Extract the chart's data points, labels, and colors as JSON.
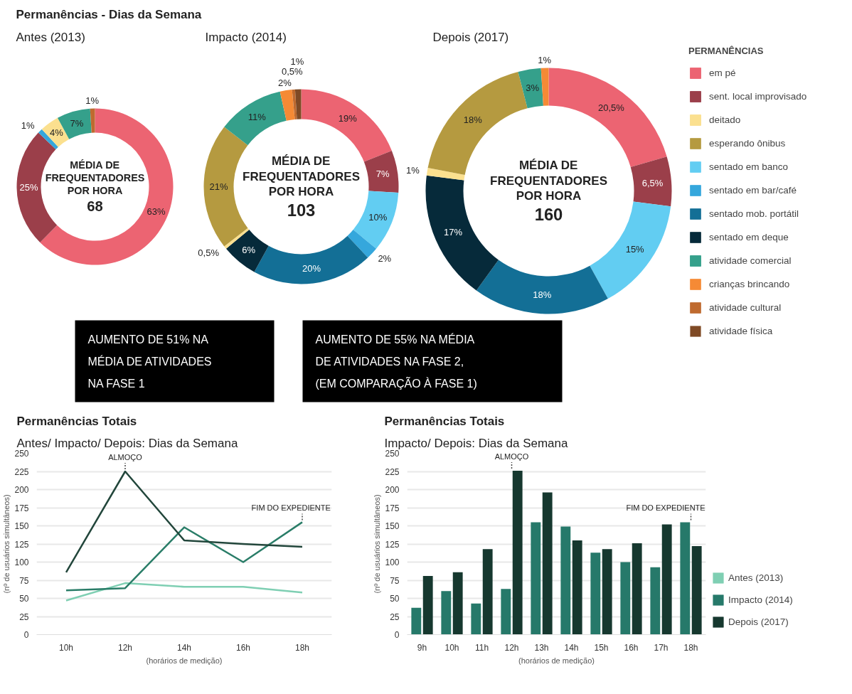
{
  "chart_data": [
    {
      "type": "donut",
      "title": "Permanências - Dias da Semana",
      "subtitle": "Antes (2013)",
      "values": [
        63,
        25,
        1,
        4,
        7,
        1
      ],
      "colors": [
        "#ec6472",
        "#9b3f4a",
        "#35a7dc",
        "#fbe08f",
        "#35a08b",
        "#bf6a2f"
      ],
      "value_labels": [
        "63%",
        "25%",
        "1%",
        "4%",
        "7%",
        "1%"
      ],
      "annotations": [
        "MÉDIA DE FREQUENTADORES POR HORA",
        "68"
      ]
    },
    {
      "type": "donut",
      "subtitle": "Impacto (2014)",
      "values": [
        19,
        7,
        10,
        2,
        20,
        6,
        0.5,
        21,
        11,
        2,
        0.5,
        1
      ],
      "colors": [
        "#ec6472",
        "#9b3f4a",
        "#62cdf2",
        "#35a7dc",
        "#136f96",
        "#062a3a",
        "#fbe08f",
        "#b59a40",
        "#35a08b",
        "#f58a35",
        "#bf6a2f",
        "#7f4a25"
      ],
      "value_labels": [
        "19%",
        "7%",
        "10%",
        "2%",
        "20%",
        "6%",
        "0,5%",
        "21%",
        "11%",
        "2%",
        "0,5%",
        "1%"
      ],
      "annotations": [
        "MÉDIA DE FREQUENTADORES POR HORA",
        "103",
        "AUMENTO DE 51% NA MÉDIA DE ATIVIDADES NA FASE 1"
      ]
    },
    {
      "type": "donut",
      "subtitle": "Depois (2017)",
      "values": [
        20.5,
        6.5,
        15,
        18,
        17,
        1,
        18,
        3,
        1
      ],
      "colors": [
        "#ec6472",
        "#9b3f4a",
        "#62cdf2",
        "#136f96",
        "#062a3a",
        "#fbe08f",
        "#b59a40",
        "#35a08b",
        "#f58a35"
      ],
      "value_labels": [
        "20,5%",
        "6,5%",
        "15%",
        "18%",
        "17%",
        "1%",
        "18%",
        "3%",
        "1%"
      ],
      "annotations": [
        "MÉDIA DE FREQUENTADORES POR HORA",
        "160",
        "AUMENTO DE 55% NA MÉDIA DE ATIVIDADES NA FASE 2, (EM COMPARAÇÃO À FASE 1)"
      ]
    },
    {
      "type": "other",
      "title": "PERMANÊNCIAS",
      "categories": [
        "em pé",
        "sent. local improvisado",
        "deitado",
        "esperando ônibus",
        "sentado em banco",
        "sentado em bar/café",
        "sentado mob. portátil",
        "sentado em deque",
        "atividade comercial",
        "crianças brincando",
        "atividade cultural",
        "atividade física"
      ],
      "colors": [
        "#ec6472",
        "#9b3f4a",
        "#fbe08f",
        "#b59a40",
        "#62cdf2",
        "#35a7dc",
        "#136f96",
        "#062a3a",
        "#35a08b",
        "#f58a35",
        "#bf6a2f",
        "#7f4a25"
      ]
    },
    {
      "type": "line",
      "title": "Permanências Totais",
      "subtitle": "Antes/ Impacto/ Depois: Dias da Semana",
      "xlabel": "(horários de medição)",
      "ylabel": "(nº de usuários simultâneos)",
      "categories": [
        "10h",
        "12h",
        "14h",
        "16h",
        "18h"
      ],
      "ylim": [
        0,
        250
      ],
      "yticks": [
        0,
        25,
        50,
        75,
        100,
        125,
        150,
        175,
        200,
        225,
        250
      ],
      "grid": "y",
      "series": [
        {
          "color": "#7fcfb3",
          "values": [
            47,
            71,
            66,
            66,
            58
          ]
        },
        {
          "color": "#2a7d68",
          "values": [
            61,
            64,
            148,
            100,
            155
          ]
        },
        {
          "color": "#22463b",
          "values": [
            86,
            225,
            130,
            125,
            121
          ]
        }
      ],
      "annotations": [
        {
          "text": "ALMOÇO",
          "x": "12h",
          "y": 225
        },
        {
          "text": "FIM DO EXPEDIENTE",
          "x": "18h",
          "y": 155
        }
      ]
    },
    {
      "type": "bar",
      "title": "Permanências Totais",
      "subtitle": "Impacto/ Depois: Dias da Semana",
      "xlabel": "(horários de medição)",
      "ylabel": "(nº de usuários simultâneos)",
      "categories": [
        "9h",
        "10h",
        "11h",
        "12h",
        "13h",
        "14h",
        "15h",
        "16h",
        "17h",
        "18h"
      ],
      "ylim": [
        0,
        250
      ],
      "yticks": [
        0,
        25,
        50,
        75,
        100,
        125,
        150,
        175,
        200,
        225,
        250
      ],
      "grid": "y",
      "legend": "right",
      "series": [
        {
          "name": "Antes (2013)",
          "color": "#7fcfb3",
          "values": [
            null,
            null,
            null,
            null,
            null,
            null,
            null,
            null,
            null,
            null
          ]
        },
        {
          "name": "Impacto (2014)",
          "color": "#26796a",
          "values": [
            37,
            60,
            43,
            63,
            155,
            149,
            113,
            100,
            93,
            155
          ]
        },
        {
          "name": "Depois (2017)",
          "color": "#16382f",
          "values": [
            81,
            86,
            118,
            226,
            196,
            130,
            118,
            126,
            152,
            122
          ]
        }
      ],
      "annotations": [
        {
          "text": "ALMOÇO",
          "x": "12h",
          "y": 226
        },
        {
          "text": "FIM DO EXPEDIENTE",
          "x": "18h",
          "y": 155
        }
      ]
    }
  ]
}
